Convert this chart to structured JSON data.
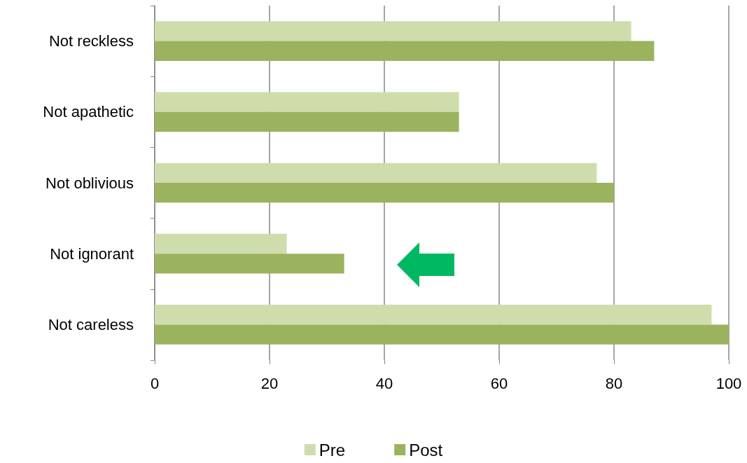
{
  "chart_data": {
    "type": "bar",
    "orientation": "horizontal",
    "categories": [
      "Not reckless",
      "Not apathetic",
      "Not oblivious",
      "Not ignorant",
      "Not careless"
    ],
    "series": [
      {
        "name": "Pre",
        "color": "#cfddac",
        "values": [
          83,
          53,
          77,
          23,
          97
        ]
      },
      {
        "name": "Post",
        "color": "#9bb35e",
        "values": [
          87,
          53,
          80,
          33,
          100
        ]
      }
    ],
    "xlim": [
      0,
      100
    ],
    "xticks": [
      0,
      20,
      40,
      60,
      80,
      100
    ],
    "grid": "x",
    "legend": "bottom"
  }
}
